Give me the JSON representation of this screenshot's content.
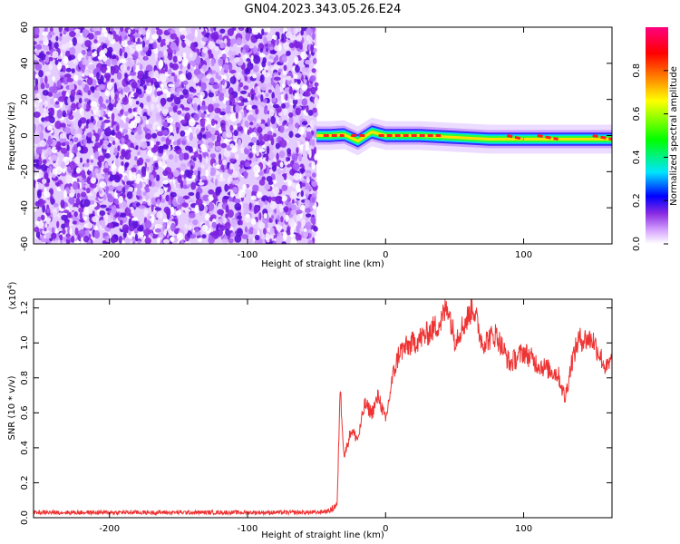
{
  "title": "GN04.2023.343.05.26.E24",
  "chart_data": [
    {
      "type": "heatmap",
      "xlabel": "Height of straight line (km)",
      "ylabel": "Frequency (Hz)",
      "xlim": [
        -255,
        164
      ],
      "ylim": [
        -60,
        60
      ],
      "xticks": [
        -200,
        -100,
        0,
        100
      ],
      "yticks": [
        -60,
        -40,
        -20,
        0,
        20,
        40,
        60
      ],
      "colorbar": {
        "label": "Normalized spectral amplitude",
        "range": [
          0,
          1
        ],
        "ticks": [
          "0.0",
          "0.2",
          "0.4",
          "0.6",
          "0.8"
        ],
        "colors": [
          "#ffffff",
          "#d8a8ff",
          "#8a2be2",
          "#0000ff",
          "#00e5ff",
          "#00ff00",
          "#ffff00",
          "#ff8000",
          "#ff0000",
          "#ff0080"
        ]
      },
      "noise_region_x": [
        -255,
        -50
      ],
      "band_center_hz": [
        {
          "x": -50,
          "y": 0
        },
        {
          "x": -40,
          "y": 0
        },
        {
          "x": -30,
          "y": 0.5
        },
        {
          "x": -20,
          "y": -3
        },
        {
          "x": -10,
          "y": 2
        },
        {
          "x": 0,
          "y": 0
        },
        {
          "x": 25,
          "y": 0
        },
        {
          "x": 50,
          "y": -1
        },
        {
          "x": 75,
          "y": -2
        },
        {
          "x": 100,
          "y": -2
        },
        {
          "x": 125,
          "y": -2
        },
        {
          "x": 164,
          "y": -2
        }
      ],
      "grid": false
    },
    {
      "type": "line",
      "xlabel": "Height of straight line (km)",
      "ylabel": "SNR (10 * v/v)",
      "y_scale_label": "(x10^4)",
      "xlim": [
        -255,
        164
      ],
      "ylim": [
        0,
        1.25
      ],
      "xticks": [
        -200,
        -100,
        0,
        100
      ],
      "yticks": [
        "0.0",
        "0.2",
        "0.4",
        "0.6",
        "0.8",
        "1.0",
        "1.2"
      ],
      "color": "#ee3333",
      "x": [
        -255,
        -200,
        -150,
        -100,
        -50,
        -40,
        -35,
        -33,
        -30,
        -25,
        -20,
        -15,
        -10,
        -5,
        0,
        5,
        10,
        20,
        30,
        40,
        45,
        50,
        60,
        63,
        70,
        80,
        90,
        100,
        110,
        120,
        125,
        130,
        135,
        140,
        150,
        160,
        164
      ],
      "y": [
        0.03,
        0.03,
        0.03,
        0.03,
        0.03,
        0.04,
        0.08,
        0.75,
        0.35,
        0.5,
        0.45,
        0.65,
        0.6,
        0.7,
        0.55,
        0.8,
        0.95,
        1.0,
        1.05,
        1.12,
        1.22,
        1.02,
        1.15,
        1.22,
        1.0,
        1.05,
        0.88,
        0.95,
        0.88,
        0.84,
        0.82,
        0.68,
        0.9,
        1.02,
        1.02,
        0.85,
        0.9
      ],
      "grid": false
    }
  ]
}
